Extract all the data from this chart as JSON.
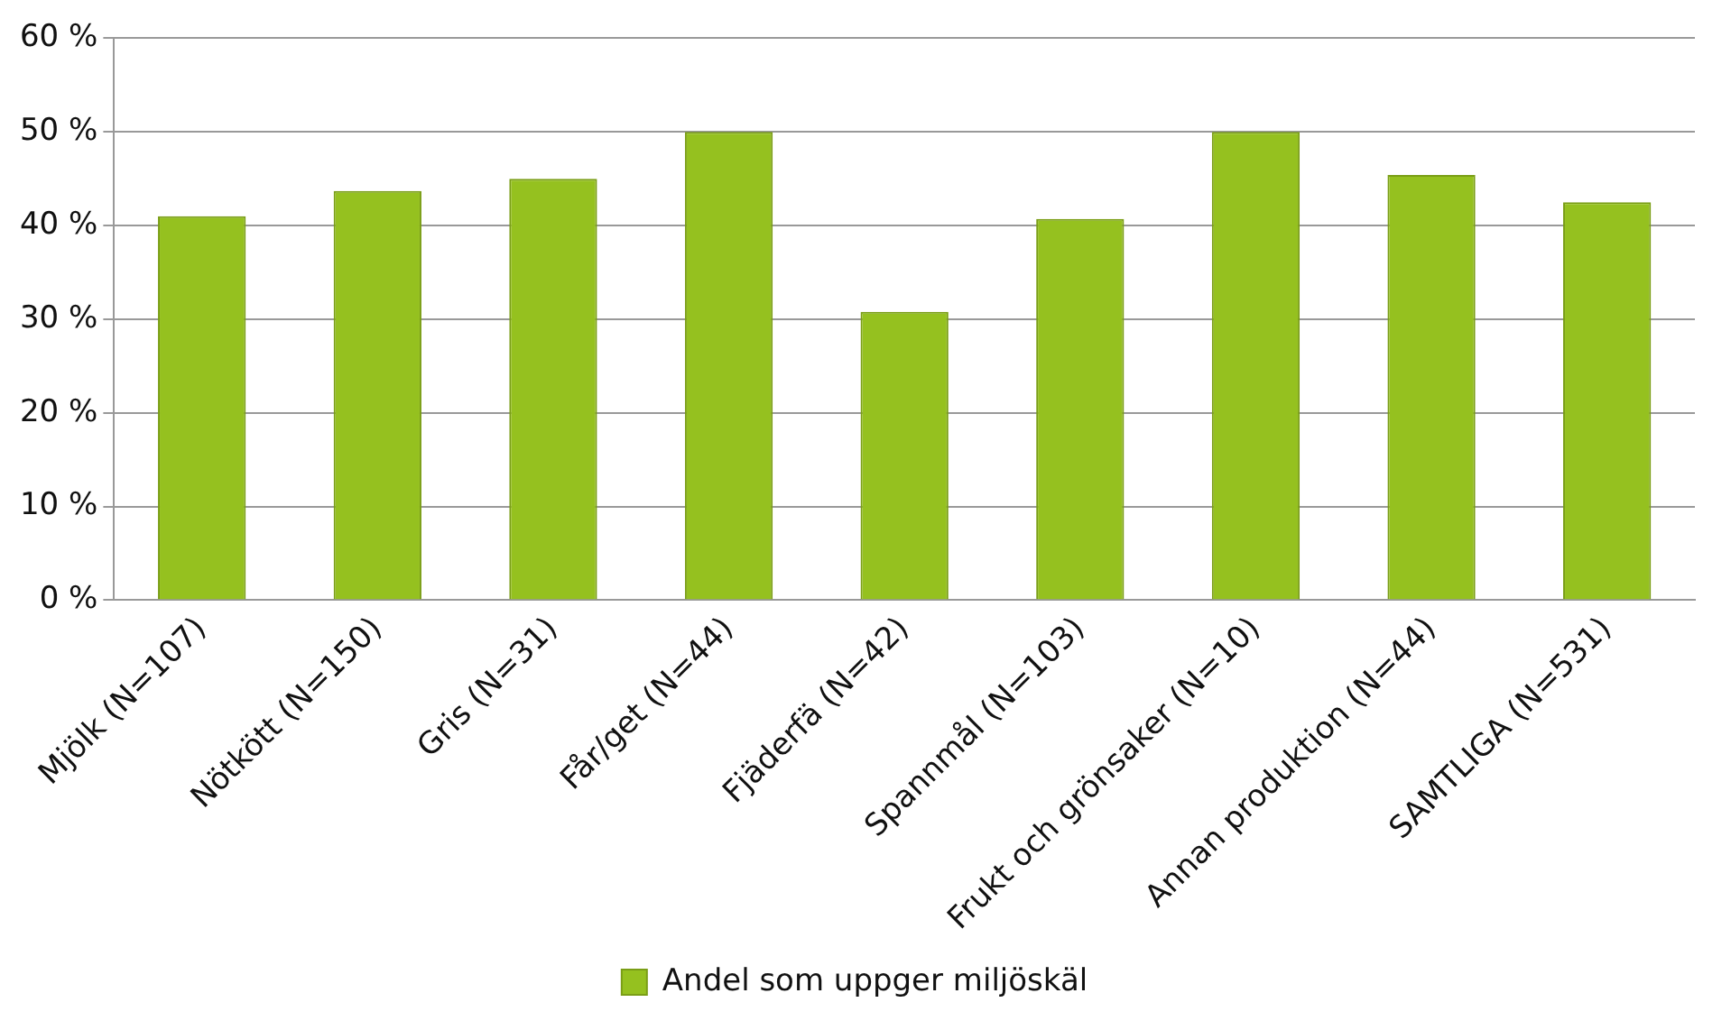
{
  "chart_data": {
    "type": "bar",
    "categories": [
      "Mjölk (N=107)",
      "Nötkött (N=150)",
      "Gris (N=31)",
      "Får/get (N=44)",
      "Fjäderfä (N=42)",
      "Spannmål (N=103)",
      "Frukt och grönsaker (N=10)",
      "Annan produktion (N=44)",
      "SAMTLIGA (N=531)"
    ],
    "series": [
      {
        "name": "Andel som uppger miljöskäl",
        "color": "#95c11f",
        "values": [
          41,
          43.7,
          45,
          50,
          30.8,
          40.7,
          50,
          45.4,
          42.5
        ]
      }
    ],
    "ylim": [
      0,
      60
    ],
    "yticks": [
      {
        "value": 0,
        "label": "0 %"
      },
      {
        "value": 10,
        "label": "10 %"
      },
      {
        "value": 20,
        "label": "20 %"
      },
      {
        "value": 30,
        "label": "30 %"
      },
      {
        "value": 40,
        "label": "40 %"
      },
      {
        "value": 50,
        "label": "50 %"
      },
      {
        "value": 60,
        "label": "60 %"
      }
    ],
    "grid": "y",
    "legend": "bottom"
  }
}
